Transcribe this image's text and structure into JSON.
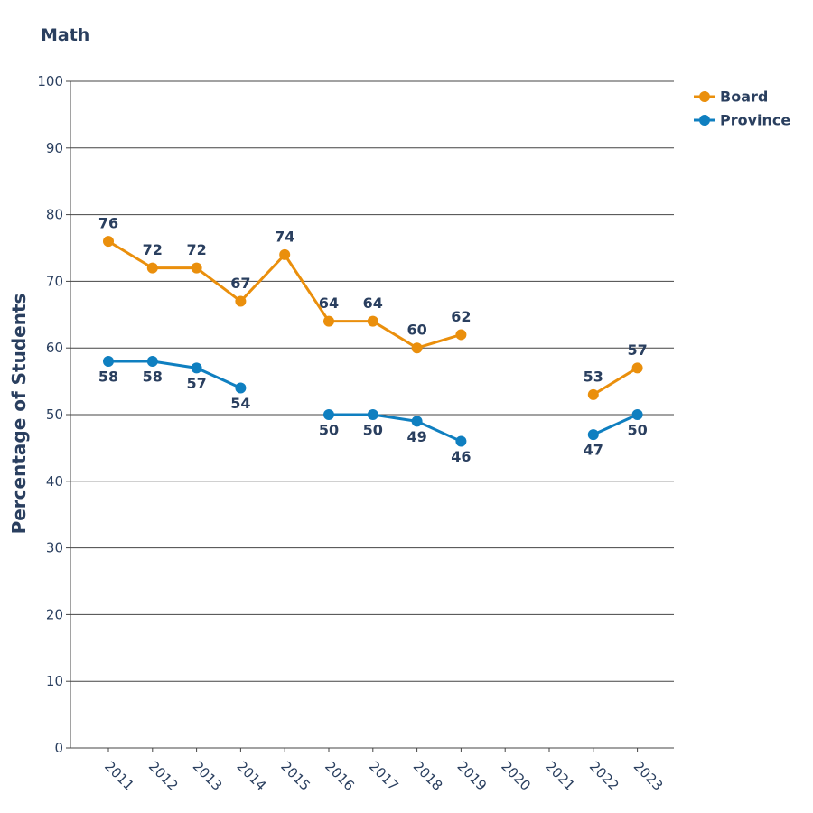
{
  "chart_data": {
    "type": "line",
    "title": "Math",
    "xlabel": "",
    "ylabel": "Percentage of Students",
    "ylim": [
      0,
      100
    ],
    "yticks": [
      0,
      10,
      20,
      30,
      40,
      50,
      60,
      70,
      80,
      90,
      100
    ],
    "categories": [
      "2011",
      "2012",
      "2013",
      "2014",
      "2015",
      "2016",
      "2017",
      "2018",
      "2019",
      "2020",
      "2021",
      "2022",
      "2023"
    ],
    "grid": true,
    "legend_position": "top-right",
    "series": [
      {
        "name": "Board",
        "color": "#ea8f0c",
        "values": [
          76,
          72,
          72,
          67,
          74,
          64,
          64,
          60,
          62,
          null,
          null,
          53,
          57
        ]
      },
      {
        "name": "Province",
        "color": "#0f7fc0",
        "values": [
          58,
          58,
          57,
          54,
          null,
          50,
          50,
          49,
          46,
          null,
          null,
          47,
          50
        ]
      }
    ]
  }
}
